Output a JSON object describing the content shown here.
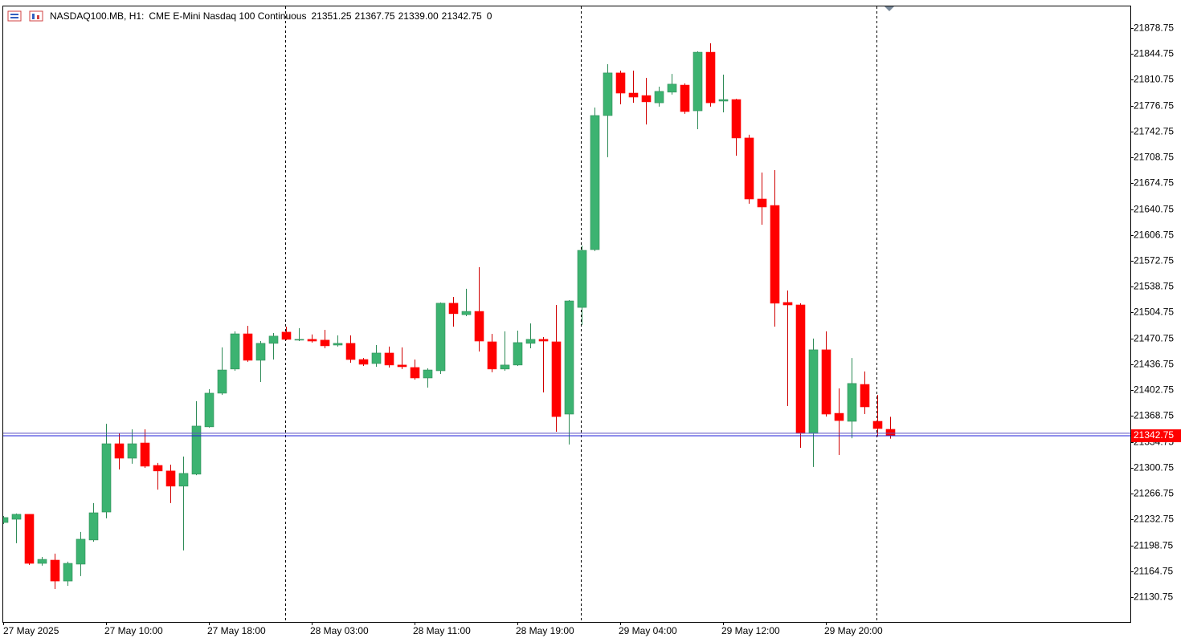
{
  "header": {
    "symbol": "NASDAQ100.MB, H1:",
    "description": "CME E-Mini Nasdaq 100 Continuous",
    "ohlc": [
      "21351.25",
      "21367.75",
      "21339.00",
      "21342.75"
    ],
    "volume": "0"
  },
  "chart_data": {
    "type": "candlestick",
    "categories": [
      "27 May 2025",
      null,
      null,
      null,
      null,
      null,
      null,
      null,
      "27 May 10:00",
      null,
      null,
      null,
      null,
      null,
      null,
      null,
      "27 May 18:00",
      null,
      null,
      null,
      null,
      null,
      null,
      null,
      "28 May 03:00",
      null,
      null,
      null,
      null,
      null,
      null,
      null,
      "28 May 11:00",
      null,
      null,
      null,
      null,
      null,
      null,
      null,
      "28 May 19:00",
      null,
      null,
      null,
      null,
      null,
      null,
      null,
      "29 May 04:00",
      null,
      null,
      null,
      null,
      null,
      null,
      null,
      "29 May 12:00",
      null,
      null,
      null,
      null,
      null,
      null,
      null,
      "29 May 20:00",
      null,
      null,
      null,
      null,
      null
    ],
    "open": [
      21228.75,
      21233,
      21239.5,
      21175,
      21179.25,
      21151.75,
      21174,
      21205.75,
      21242.5,
      21332.25,
      21313.25,
      21333.25,
      21303.75,
      21296.5,
      21276.5,
      21292.25,
      21354.5,
      21398.75,
      21430.5,
      21476.75,
      21442,
      21464.25,
      21479,
      21468.5,
      21469.5,
      21468.5,
      21462,
      21464.25,
      21443,
      21437.75,
      21451.5,
      21435.75,
      21432.5,
      21418.75,
      21428.25,
      21517,
      21502,
      21506.25,
      21466.25,
      21430.5,
      21435.75,
      21464.25,
      21469.5,
      21466.25,
      21371.25,
      21511.5,
      21587.5,
      21763.75,
      21819.75,
      21793.25,
      21790,
      21780.5,
      21794.5,
      21803.75,
      21770,
      21847,
      21782.75,
      21784.75,
      21734.25,
      21654,
      21645.5,
      21518,
      21514.75,
      21346,
      21455.75,
      21372.25,
      21361.75,
      21410.25,
      21361.75,
      21351.25
    ],
    "high": [
      21237.25,
      21240.5,
      21239.5,
      21183.5,
      21187.75,
      21177.25,
      21216.25,
      21254.25,
      21358.5,
      21346,
      21351.25,
      21351.25,
      21307,
      21304.75,
      21315.5,
      21388.25,
      21404,
      21459,
      21480,
      21487.25,
      21467.25,
      21477.75,
      21486.25,
      21484.25,
      21476,
      21482,
      21474.75,
      21474.75,
      21445,
      21462,
      21460,
      21459,
      21443,
      21431.5,
      21518,
      21525.25,
      21536,
      21564.5,
      21476.75,
      21480,
      21481,
      21490.5,
      21472.5,
      21514.75,
      21521,
      21592.75,
      21774.25,
      21831.25,
      21822.75,
      21822.75,
      21813.25,
      21801.75,
      21818.5,
      21806,
      21848.25,
      21858.75,
      21817.5,
      21785.75,
      21738.5,
      21688.75,
      21692,
      21533.75,
      21517,
      21470.5,
      21480,
      21405,
      21445,
      21427.25,
      21396.5,
      21367.75
    ],
    "low": [
      21226.75,
      21201.5,
      21173,
      21172,
      21141.25,
      21145.5,
      21158.25,
      21203.5,
      21234.25,
      21298.5,
      21306,
      21300.5,
      21272,
      21254.25,
      21192,
      21291,
      21353.5,
      21396.5,
      21428.25,
      21440,
      21413.5,
      21443,
      21468.5,
      21467.25,
      21465.25,
      21457.75,
      21460,
      21438.75,
      21434.5,
      21433.5,
      21432.5,
      21430.5,
      21416.5,
      21406,
      21424,
      21486.25,
      21500,
      21453.5,
      21426.25,
      21428.25,
      21434.5,
      21457.75,
      21399.75,
      21348,
      21331.25,
      21488.5,
      21585.5,
      21709,
      21778.5,
      21780.5,
      21752,
      21775.5,
      21791.25,
      21766,
      21745.75,
      21775.5,
      21768,
      21711,
      21647.75,
      21620.25,
      21486.25,
      21381.75,
      21327,
      21301.75,
      21368,
      21317.5,
      21339.5,
      21371.25,
      21341.75,
      21339
    ],
    "close": [
      21235.25,
      21239.5,
      21175,
      21180.25,
      21151.75,
      21175,
      21206.75,
      21241.5,
      21332.25,
      21313.25,
      21332.25,
      21302.75,
      21296.5,
      21276.5,
      21293.25,
      21355.5,
      21398.75,
      21429.25,
      21476.75,
      21442,
      21464.25,
      21473.75,
      21469.5,
      21469.5,
      21467.25,
      21461,
      21464.25,
      21443,
      21436.75,
      21451.5,
      21435.75,
      21433.5,
      21418.75,
      21429.25,
      21517,
      21503.25,
      21506.25,
      21467.25,
      21430.5,
      21435.75,
      21465.25,
      21469.5,
      21467.25,
      21368,
      21520,
      21586.5,
      21763.75,
      21819.75,
      21793.25,
      21788,
      21781.75,
      21795.5,
      21805,
      21769,
      21847,
      21780.5,
      21784.75,
      21734.25,
      21654,
      21643.5,
      21517,
      21514.75,
      21346,
      21455.75,
      21371.25,
      21362.75,
      21411.5,
      21380.75,
      21352.25,
      21342.75
    ],
    "up_color": "#3cb371",
    "down_color": "#ff0000",
    "last_price": 21342.75,
    "ask_price": 21346,
    "price_line_color": "#1f1fd8",
    "ask_line_color": "#5a4fc0",
    "ylim": [
      21098,
      21907.2
    ],
    "yticks": [
      21130.75,
      21164.75,
      21198.75,
      21232.75,
      21266.75,
      21300.75,
      21334.75,
      21368.75,
      21402.75,
      21436.75,
      21470.75,
      21504.75,
      21538.75,
      21572.75,
      21606.75,
      21640.75,
      21674.75,
      21708.75,
      21742.75,
      21776.75,
      21810.75,
      21844.75,
      21878.75
    ],
    "grid": false
  }
}
